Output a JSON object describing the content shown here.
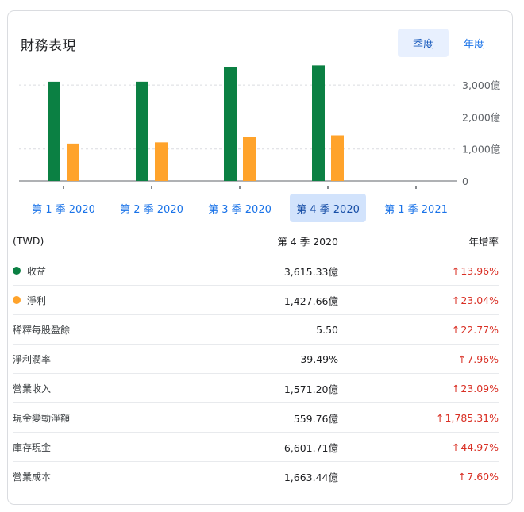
{
  "card": {
    "title": "財務表現",
    "toggle": {
      "quarter_label": "季度",
      "annual_label": "年度",
      "selected": "季度"
    }
  },
  "colors": {
    "revenue": "#0b8043",
    "net_income": "#ffa32b",
    "accent": "#1a73e8",
    "negative": "#d93025"
  },
  "chart_data": {
    "type": "bar",
    "categories": [
      "第 1 季 2020",
      "第 2 季 2020",
      "第 3 季 2020",
      "第 4 季 2020",
      "第 1 季 2021"
    ],
    "series": [
      {
        "name": "收益",
        "color": "#0b8043",
        "values": [
          3106,
          3107,
          3562,
          3615.33,
          null
        ]
      },
      {
        "name": "淨利",
        "color": "#ffa32b",
        "values": [
          1170,
          1208,
          1373,
          1427.66,
          null
        ]
      }
    ],
    "y_ticks": [
      "3,000億",
      "2,000億",
      "1,000億",
      "0"
    ],
    "y_tick_values": [
      3000,
      2000,
      1000,
      0
    ],
    "ylim": [
      0,
      3600
    ],
    "grid": true
  },
  "quarter_tabs": [
    {
      "label": "第 1 季 2020",
      "active": false
    },
    {
      "label": "第 2 季 2020",
      "active": false
    },
    {
      "label": "第 3 季 2020",
      "active": false
    },
    {
      "label": "第 4 季 2020",
      "active": true
    },
    {
      "label": "第 1 季 2021",
      "active": false
    }
  ],
  "table": {
    "header": {
      "currency": "(TWD)",
      "period": "第 4 季 2020",
      "change": "年增率"
    },
    "rows": [
      {
        "label": "收益",
        "value": "3,615.33億",
        "arrow": "↑",
        "change": "13.96%",
        "dot": "#0b8043"
      },
      {
        "label": "淨利",
        "value": "1,427.66億",
        "arrow": "↑",
        "change": "23.04%",
        "dot": "#ffa32b"
      },
      {
        "label": "稀釋每股盈餘",
        "value": "5.50",
        "arrow": "↑",
        "change": "22.77%"
      },
      {
        "label": "淨利潤率",
        "value": "39.49%",
        "arrow": "↑",
        "change": "7.96%"
      },
      {
        "label": "營業收入",
        "value": "1,571.20億",
        "arrow": "↑",
        "change": "23.09%"
      },
      {
        "label": "現金變動淨額",
        "value": "559.76億",
        "arrow": "↑",
        "change": "1,785.31%"
      },
      {
        "label": "庫存現金",
        "value": "6,601.71億",
        "arrow": "↑",
        "change": "44.97%"
      },
      {
        "label": "營業成本",
        "value": "1,663.44億",
        "arrow": "↑",
        "change": "7.60%"
      }
    ]
  }
}
